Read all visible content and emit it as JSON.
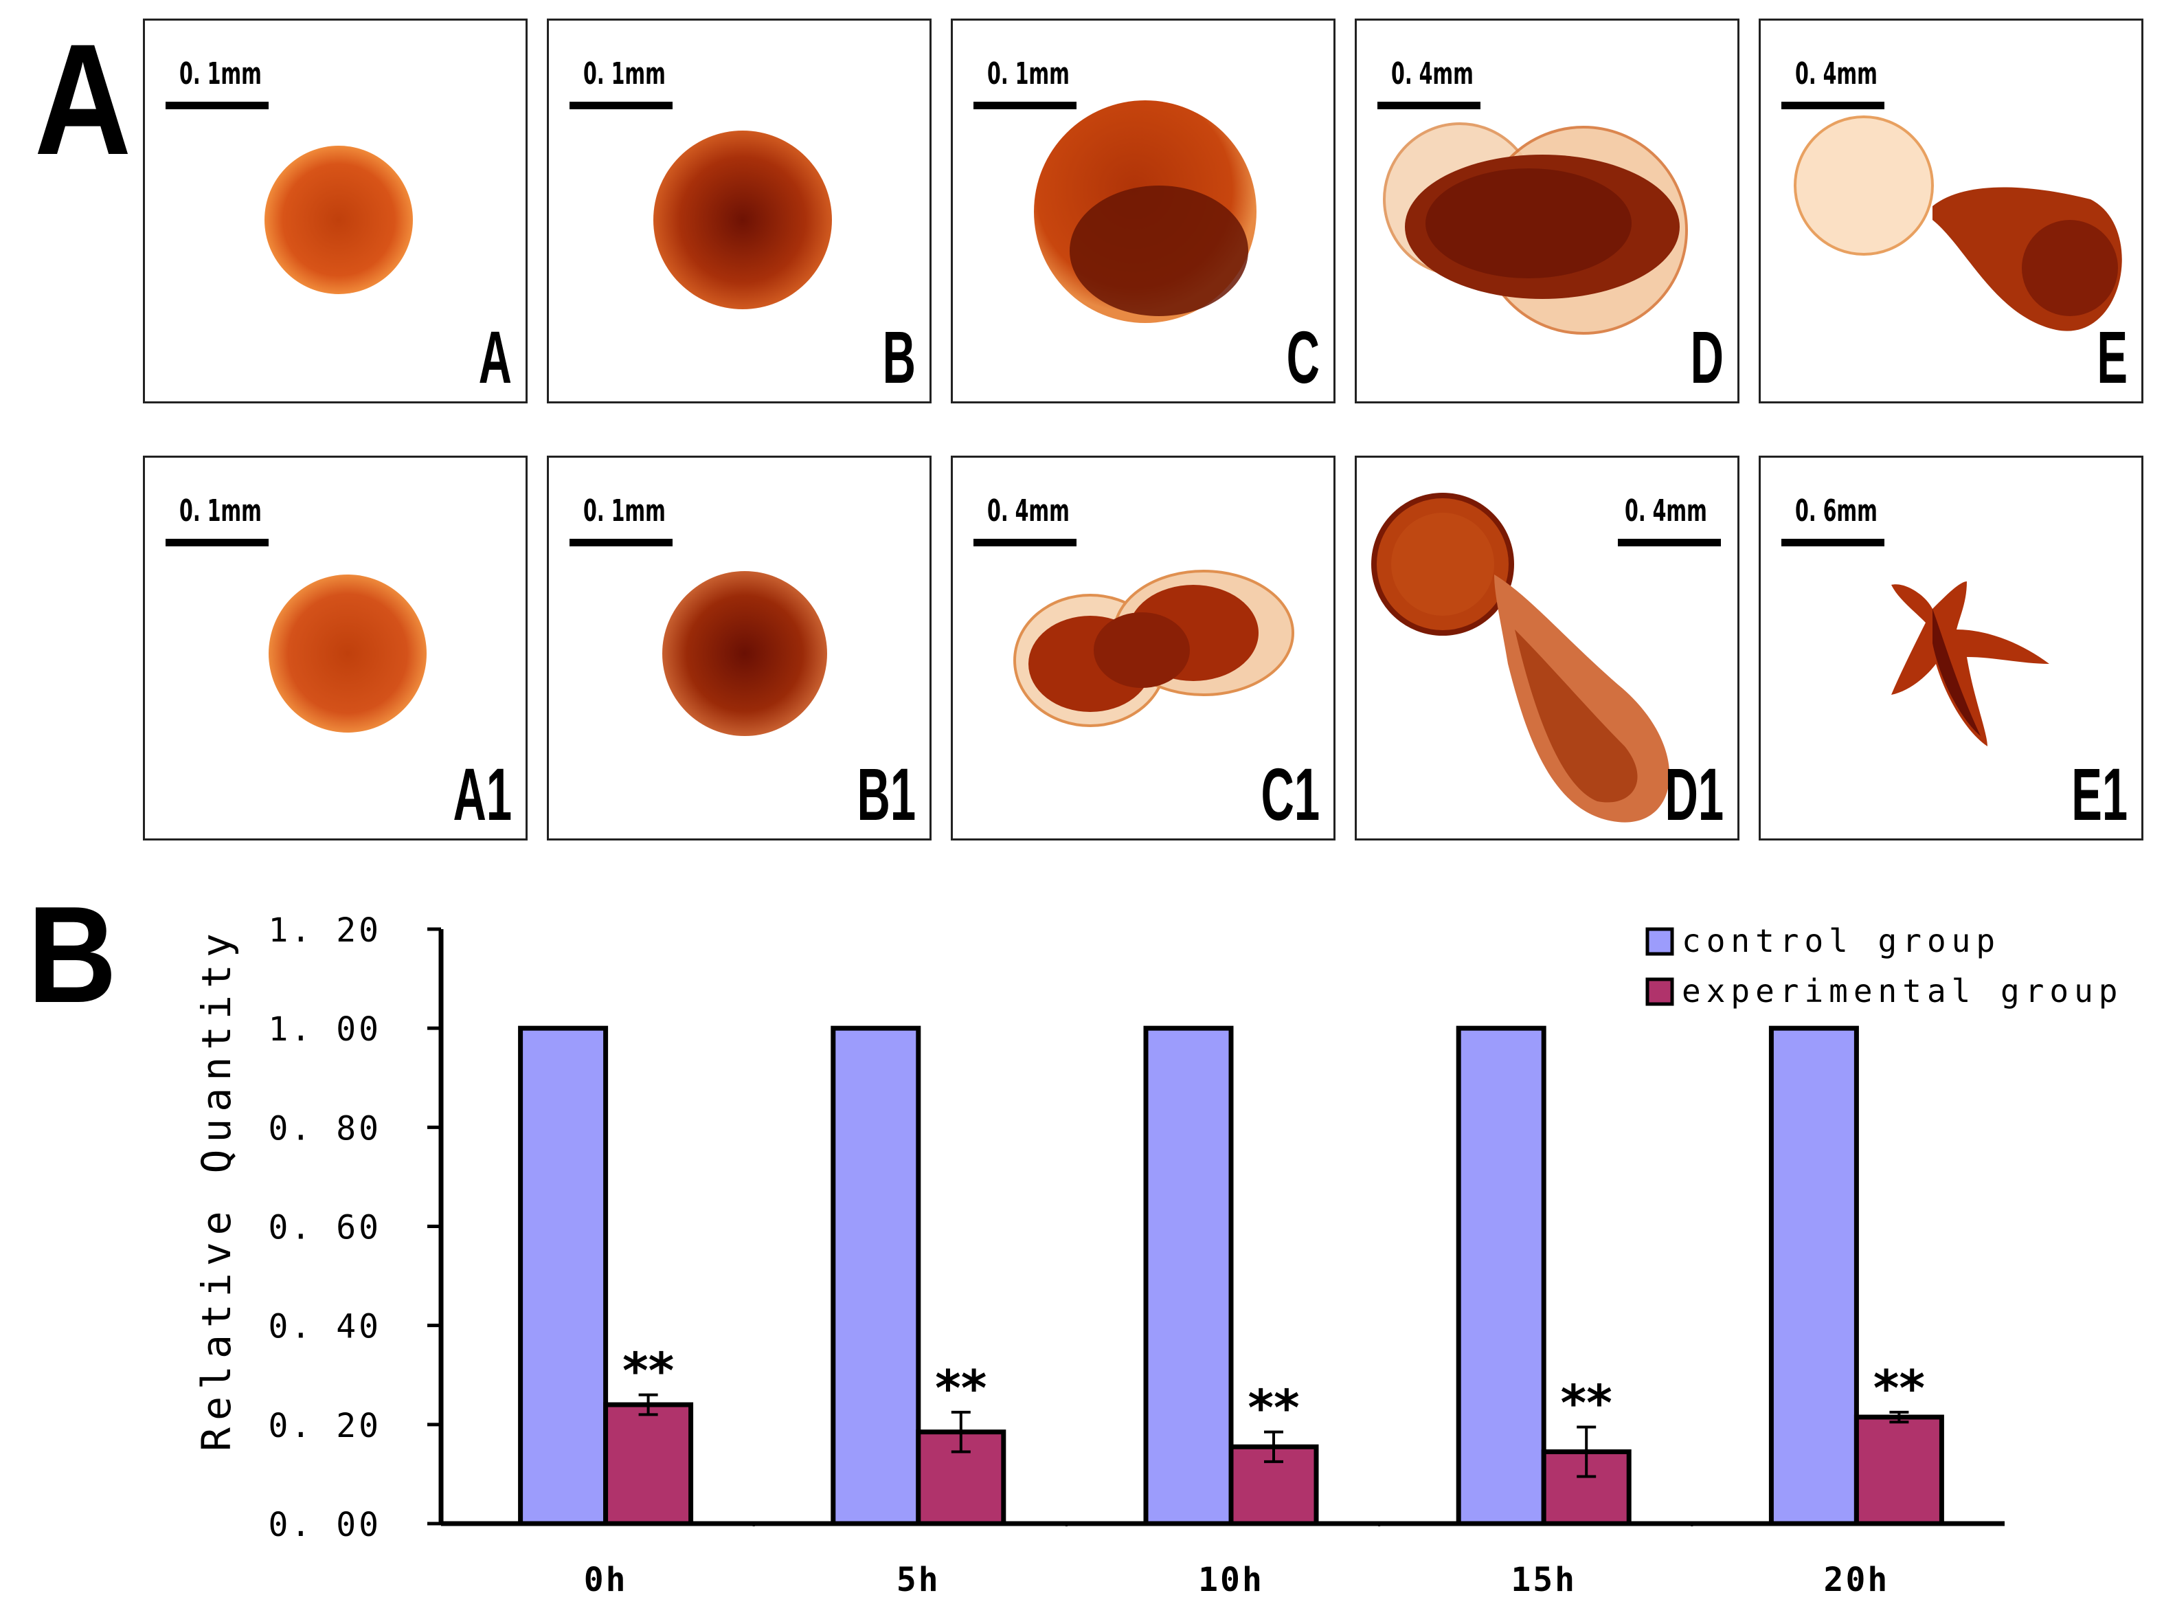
{
  "figure": {
    "part_a_label": "A",
    "part_b_label": "B"
  },
  "panels_row1": [
    {
      "label": "A",
      "scale": "0. 1mm"
    },
    {
      "label": "B",
      "scale": "0. 1mm"
    },
    {
      "label": "C",
      "scale": "0. 1mm"
    },
    {
      "label": "D",
      "scale": "0. 4mm"
    },
    {
      "label": "E",
      "scale": "0. 4mm"
    }
  ],
  "panels_row2": [
    {
      "label": "A1",
      "scale": "0. 1mm"
    },
    {
      "label": "B1",
      "scale": "0. 1mm"
    },
    {
      "label": "C1",
      "scale": "0. 4mm"
    },
    {
      "label": "D1",
      "scale": "0. 4mm"
    },
    {
      "label": "E1",
      "scale": "0. 6mm"
    }
  ],
  "colors": {
    "control": "#9c9cfc",
    "experimental": "#b0336b",
    "specimen_dark": "#7a1804",
    "specimen_mid": "#c8420e",
    "specimen_light": "#f0a060"
  },
  "chart_data": {
    "type": "bar",
    "title": "",
    "xlabel": "",
    "ylabel": "Relative Quantity",
    "categories": [
      "0h",
      "5h",
      "10h",
      "15h",
      "20h"
    ],
    "ylim": [
      0,
      1.2
    ],
    "yticks": [
      "0. 00",
      "0. 20",
      "0. 40",
      "0. 60",
      "0. 80",
      "1. 00",
      "1. 20"
    ],
    "series": [
      {
        "name": "control group",
        "values": [
          1.0,
          1.0,
          1.0,
          1.0,
          1.0
        ],
        "errors": [
          0,
          0,
          0,
          0,
          0
        ]
      },
      {
        "name": "experimental group",
        "values": [
          0.24,
          0.185,
          0.155,
          0.145,
          0.215
        ],
        "errors": [
          0.02,
          0.04,
          0.03,
          0.05,
          0.01
        ]
      }
    ],
    "annotations": [
      "**",
      "**",
      "**",
      "**",
      "**"
    ],
    "legend_position": "top-right"
  }
}
